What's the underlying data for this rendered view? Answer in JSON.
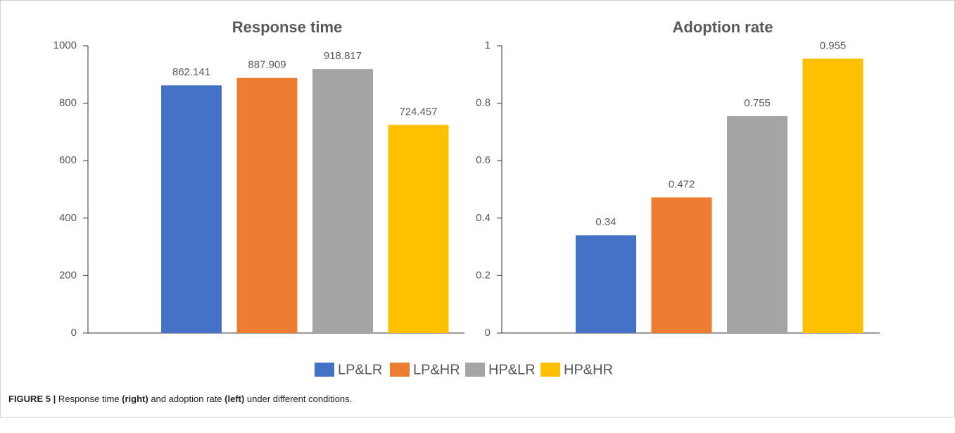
{
  "chart_data": [
    {
      "type": "bar",
      "title": "Response time",
      "values": [
        862.141,
        887.909,
        918.817,
        724.457
      ],
      "ylim": [
        0,
        1000
      ],
      "yticks": [
        0,
        200,
        400,
        600,
        800,
        1000
      ]
    },
    {
      "type": "bar",
      "title": "Adoption rate",
      "values": [
        0.34,
        0.472,
        0.755,
        0.955
      ],
      "ylim": [
        0,
        1
      ],
      "yticks": [
        0,
        0.2,
        0.4,
        0.6,
        0.8,
        1
      ]
    }
  ],
  "legend": {
    "names": [
      "LP&LR",
      "LP&HR",
      "HP&LR",
      "HP&HR"
    ],
    "colors": [
      "#4472C4",
      "#ED7D31",
      "#A5A5A5",
      "#FFC000"
    ]
  },
  "caption": [
    {
      "text": "FIGURE 5 | ",
      "bold": true
    },
    {
      "text": "Response time ",
      "bold": false
    },
    {
      "text": "(right)",
      "bold": true
    },
    {
      "text": " and adoption rate ",
      "bold": false
    },
    {
      "text": "(left)",
      "bold": true
    },
    {
      "text": " under different conditions.",
      "bold": false
    }
  ]
}
